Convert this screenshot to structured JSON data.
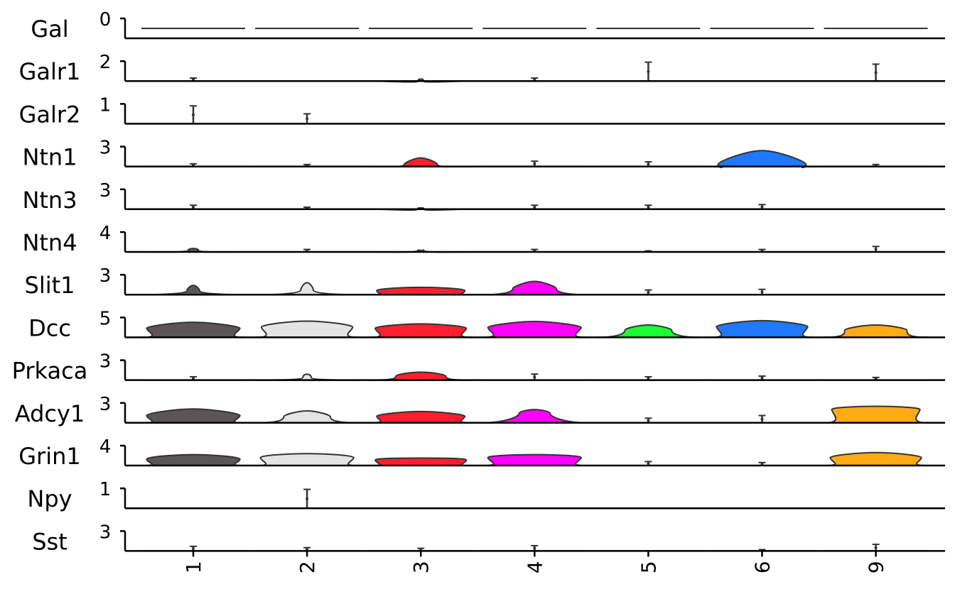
{
  "chart_data": {
    "type": "stacked_violin",
    "title": "",
    "xlabel": "",
    "ylabel": "",
    "categories": [
      "1",
      "2",
      "3",
      "4",
      "5",
      "6",
      "9"
    ],
    "category_colors": [
      "#5a5557",
      "#e4e4e4",
      "#ff1f2e",
      "#ff00ff",
      "#1aff33",
      "#1f78ff",
      "#ffab16"
    ],
    "outline_color": "#333333",
    "genes": [
      {
        "name": "Gal",
        "ymax_label": "0",
        "ymax": 0,
        "max": [
          0,
          0,
          0,
          0,
          0,
          0,
          0
        ],
        "peak": [
          0,
          0,
          0,
          0,
          0,
          0,
          0
        ],
        "width": [
          0,
          0,
          0,
          0,
          0,
          0,
          0
        ],
        "spread": [
          0,
          0,
          0,
          0,
          0,
          0,
          0
        ]
      },
      {
        "name": "Galr1",
        "ymax_label": "2",
        "ymax": 2,
        "max": [
          0.3,
          0,
          0.2,
          0.3,
          1.9,
          0,
          1.7
        ],
        "peak": [
          0,
          0,
          0,
          0,
          0,
          0,
          0
        ],
        "width": [
          0,
          0,
          0.05,
          0,
          0,
          0,
          0
        ],
        "spread": [
          0,
          0,
          0,
          0,
          0,
          0,
          0
        ]
      },
      {
        "name": "Galr2",
        "ymax_label": "1",
        "ymax": 1,
        "max": [
          0.9,
          0.5,
          0,
          0,
          0,
          0,
          0
        ],
        "peak": [
          0,
          0,
          0,
          0,
          0,
          0,
          0
        ],
        "width": [
          0,
          0,
          0,
          0,
          0,
          0,
          0
        ],
        "spread": [
          0,
          0,
          0,
          0,
          0,
          0,
          0
        ]
      },
      {
        "name": "Ntn1",
        "ymax_label": "3",
        "ymax": 3,
        "max": [
          0.4,
          0.3,
          1.3,
          0.8,
          0.7,
          2.4,
          0.3
        ],
        "peak": [
          0,
          0,
          0.3,
          0,
          0,
          0.3,
          0
        ],
        "width": [
          0,
          0,
          0.32,
          0,
          0,
          0.85,
          0
        ],
        "spread": [
          0,
          0,
          0.45,
          0,
          0,
          0.75,
          0
        ]
      },
      {
        "name": "Ntn3",
        "ymax_label": "3",
        "ymax": 3,
        "max": [
          0.6,
          0.3,
          0.2,
          0.6,
          0.6,
          0.7,
          0
        ],
        "peak": [
          0,
          0,
          0,
          0,
          0,
          0,
          0
        ],
        "width": [
          0,
          0,
          0.06,
          0,
          0,
          0,
          0
        ],
        "spread": [
          0,
          0,
          0,
          0,
          0,
          0,
          0
        ]
      },
      {
        "name": "Ntn4",
        "ymax_label": "4",
        "ymax": 4,
        "max": [
          0.7,
          0.5,
          0.3,
          0.5,
          0.2,
          0.5,
          1.1
        ],
        "peak": [
          0.3,
          0,
          0.25,
          0,
          0,
          0,
          0
        ],
        "width": [
          0.1,
          0,
          0.06,
          0,
          0,
          0,
          0
        ],
        "spread": [
          0.25,
          0,
          0.2,
          0,
          0,
          0,
          0
        ]
      },
      {
        "name": "Slit1",
        "ymax_label": "3",
        "ymax": 3,
        "max": [
          1.4,
          1.8,
          1.1,
          2.0,
          0.7,
          0.8,
          0
        ],
        "peak": [
          0.6,
          0.7,
          0.6,
          0.9,
          0,
          0,
          0
        ],
        "width": [
          0.12,
          0.12,
          0.85,
          0.42,
          0,
          0,
          0
        ],
        "spread": [
          0.45,
          0.55,
          0.5,
          0.5,
          0,
          0,
          0
        ]
      },
      {
        "name": "Dcc",
        "ymax_label": "5",
        "ymax": 5,
        "max": [
          3.8,
          4.1,
          3.4,
          4.0,
          3.1,
          4.2,
          3.1
        ],
        "peak": [
          2.3,
          2.6,
          2.3,
          2.5,
          1.8,
          2.7,
          1.8
        ],
        "width": [
          0.9,
          0.88,
          0.88,
          0.9,
          0.45,
          0.88,
          0.6
        ],
        "spread": [
          0.5,
          0.55,
          0.5,
          0.5,
          0.5,
          0.55,
          0.5
        ]
      },
      {
        "name": "Prkaca",
        "ymax_label": "3",
        "ymax": 3,
        "max": [
          0.5,
          0.9,
          1.2,
          0.9,
          0.5,
          0.6,
          0.4
        ],
        "peak": [
          0,
          0.4,
          0.6,
          0,
          0,
          0,
          0
        ],
        "width": [
          0,
          0.08,
          0.48,
          0,
          0,
          0,
          0
        ],
        "spread": [
          0,
          0.35,
          0.45,
          0,
          0,
          0,
          0
        ]
      },
      {
        "name": "Adcy1",
        "ymax_label": "3",
        "ymax": 3,
        "max": [
          2.1,
          1.8,
          1.7,
          2.0,
          0.7,
          1.1,
          2.5
        ],
        "peak": [
          1.1,
          0.9,
          1.0,
          1.4,
          0,
          0,
          2.0
        ],
        "width": [
          0.9,
          0.45,
          0.85,
          0.3,
          0,
          0,
          0.85
        ],
        "spread": [
          0.55,
          0.55,
          0.5,
          0.5,
          0,
          0,
          0.55
        ]
      },
      {
        "name": "Grin1",
        "ymax_label": "4",
        "ymax": 4,
        "max": [
          2.2,
          2.4,
          1.5,
          2.2,
          0.8,
          0.6,
          2.6
        ],
        "peak": [
          1.3,
          1.6,
          1.1,
          1.6,
          0,
          0,
          1.6
        ],
        "width": [
          0.9,
          0.9,
          0.88,
          0.9,
          0,
          0,
          0.88
        ],
        "spread": [
          0.55,
          0.55,
          0.5,
          0.5,
          0,
          0,
          0.55
        ]
      },
      {
        "name": "Npy",
        "ymax_label": "1",
        "ymax": 1,
        "max": [
          0,
          0.95,
          0,
          0,
          0,
          0,
          0
        ],
        "peak": [
          0,
          0,
          0,
          0,
          0,
          0,
          0
        ],
        "width": [
          0,
          0,
          0,
          0,
          0,
          0,
          0
        ],
        "spread": [
          0,
          0,
          0,
          0,
          0,
          0,
          0
        ]
      },
      {
        "name": "Sst",
        "ymax_label": "3",
        "ymax": 3,
        "max": [
          0.7,
          0.5,
          0.4,
          0.8,
          0,
          0.2,
          1.0
        ],
        "peak": [
          0,
          0,
          0,
          0,
          0,
          0,
          0
        ],
        "width": [
          0,
          0,
          0,
          0,
          0,
          0,
          0
        ],
        "spread": [
          0,
          0,
          0,
          0,
          0,
          0,
          0
        ]
      }
    ]
  }
}
